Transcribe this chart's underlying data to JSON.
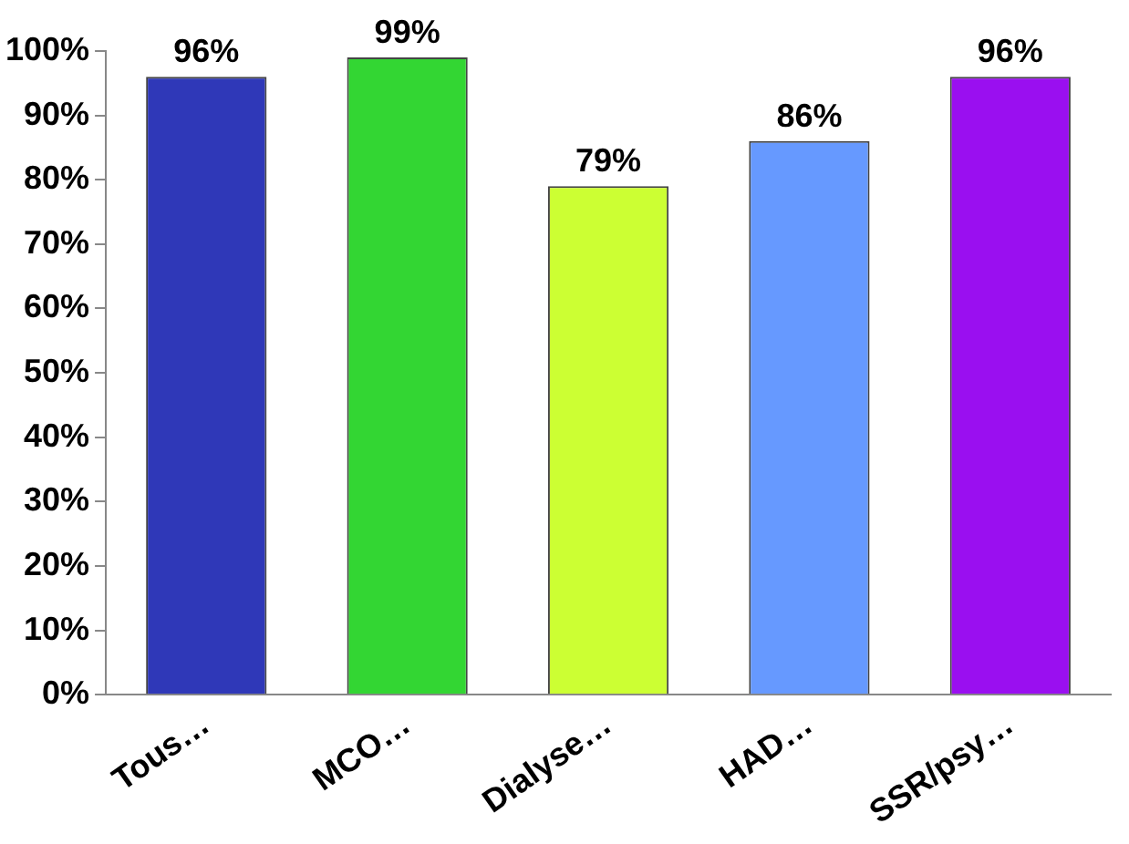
{
  "chart_data": {
    "type": "bar",
    "categories": [
      "Tous…",
      "MCO…",
      "Dialyse…",
      "HAD…",
      "SSR/psy…"
    ],
    "values": [
      96,
      99,
      79,
      86,
      96
    ],
    "value_labels": [
      "96%",
      "99%",
      "79%",
      "86%",
      "96%"
    ],
    "colors": [
      "#2f38b8",
      "#33d633",
      "#ccff33",
      "#6699ff",
      "#9a0ff0"
    ],
    "ylim": [
      0,
      100
    ],
    "yticks": [
      {
        "value": 0,
        "label": "0%"
      },
      {
        "value": 10,
        "label": "10%"
      },
      {
        "value": 20,
        "label": "20%"
      },
      {
        "value": 30,
        "label": "30%"
      },
      {
        "value": 40,
        "label": "40%"
      },
      {
        "value": 50,
        "label": "50%"
      },
      {
        "value": 60,
        "label": "60%"
      },
      {
        "value": 70,
        "label": "70%"
      },
      {
        "value": 80,
        "label": "80%"
      },
      {
        "value": 90,
        "label": "90%"
      },
      {
        "value": 100,
        "label": "100%"
      }
    ],
    "grid": false,
    "legend": false
  }
}
